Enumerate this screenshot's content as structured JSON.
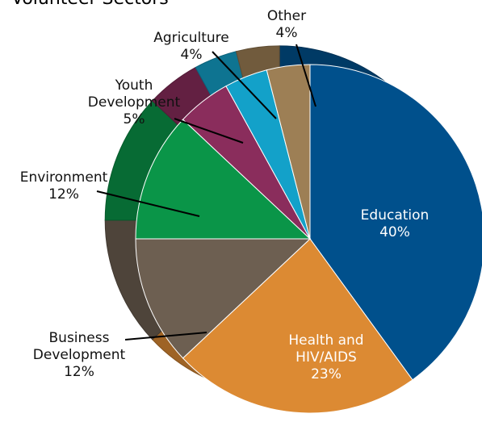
{
  "chart_data": {
    "type": "pie",
    "title": "Volunteer Sectors",
    "categories": [
      "Education",
      "Health and HIV/AIDS",
      "Business Development",
      "Environment",
      "Youth Development",
      "Agriculture",
      "Other"
    ],
    "values": [
      40,
      23,
      12,
      12,
      5,
      4,
      4
    ],
    "value_labels": [
      "40%",
      "23%",
      "12%",
      "12%",
      "5%",
      "4%",
      "4%"
    ],
    "label_lines": [
      [
        "Education"
      ],
      [
        "Health and",
        "HIV/AIDS"
      ],
      [
        "Business",
        "Development"
      ],
      [
        "Environment"
      ],
      [
        "Youth",
        "Development"
      ],
      [
        "Agriculture"
      ],
      [
        "Other"
      ]
    ],
    "colors": {
      "Education": "#00508c",
      "Health and HIV/AIDS": "#dc8a33",
      "Business Development": "#6d5f51",
      "Environment": "#0a9548",
      "Youth Development": "#8a2d5c",
      "Agriculture": "#13a1c9",
      "Other": "#9d7f55"
    },
    "legend": "none",
    "grid": false
  }
}
